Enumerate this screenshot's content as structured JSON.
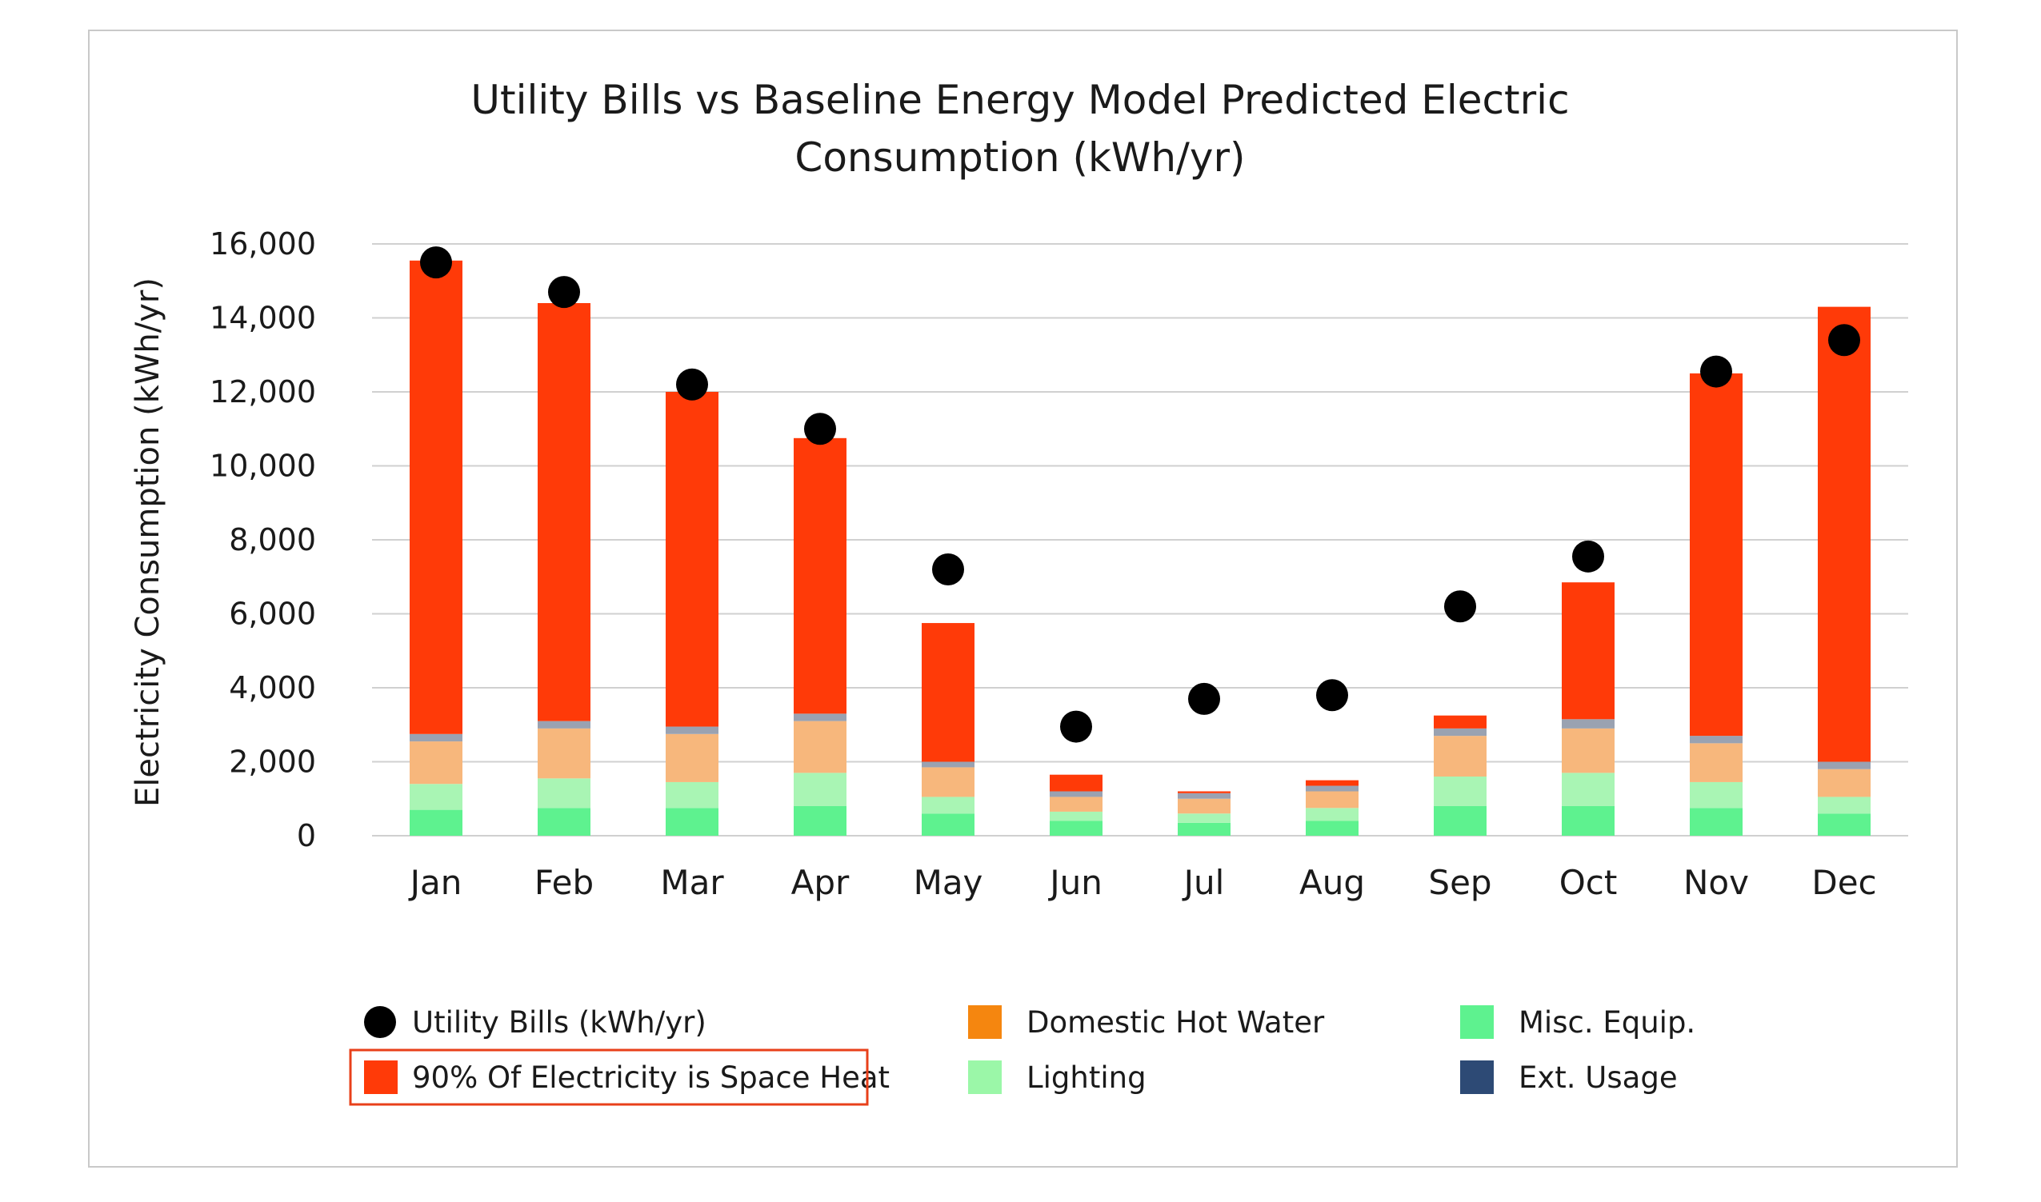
{
  "chart_data": {
    "type": "bar",
    "stacked": true,
    "title_lines": [
      "Utility Bills vs Baseline Energy Model Predicted Electric",
      "Consumption (kWh/yr)"
    ],
    "xlabel": "",
    "ylabel": "Electricity Consumption (kWh/yr)",
    "ylim": [
      0,
      16000
    ],
    "yticks": [
      0,
      2000,
      4000,
      6000,
      8000,
      10000,
      12000,
      14000,
      16000
    ],
    "ytick_labels": [
      "0",
      "2,000",
      "4,000",
      "6,000",
      "8,000",
      "10,000",
      "12,000",
      "14,000",
      "16,000"
    ],
    "grid": true,
    "categories": [
      "Jan",
      "Feb",
      "Mar",
      "Apr",
      "May",
      "Jun",
      "Jul",
      "Aug",
      "Sep",
      "Oct",
      "Nov",
      "Dec"
    ],
    "series": [
      {
        "name": "Misc. Equip.",
        "color": "#5ef28f",
        "values": [
          700,
          750,
          750,
          800,
          600,
          400,
          350,
          400,
          800,
          800,
          750,
          600
        ]
      },
      {
        "name": "Lighting",
        "color": "#a9f5b4",
        "values": [
          700,
          800,
          700,
          900,
          450,
          250,
          250,
          350,
          800,
          900,
          700,
          450
        ]
      },
      {
        "name": "Domestic Hot Water",
        "color": "#f7b77c",
        "values": [
          1150,
          1350,
          1300,
          1400,
          800,
          400,
          400,
          450,
          1100,
          1200,
          1050,
          750
        ]
      },
      {
        "name": "Ext. Usage",
        "color": "#9aa2b1",
        "values": [
          200,
          200,
          200,
          200,
          150,
          150,
          150,
          150,
          200,
          250,
          200,
          200
        ]
      },
      {
        "name": "90% Of Electricity is Space Heat",
        "color": "#ff3a08",
        "values": [
          12800,
          11300,
          9050,
          7450,
          3750,
          450,
          50,
          150,
          350,
          3700,
          9800,
          12300
        ]
      }
    ],
    "scatter_series": {
      "name": "Utility Bills (kWh/yr)",
      "color": "#000000",
      "values": [
        15500,
        14700,
        12200,
        11000,
        7200,
        2950,
        3700,
        3800,
        6200,
        7550,
        12550,
        13400
      ]
    },
    "legend": {
      "placement": "bottom",
      "items": [
        {
          "label": "Utility Bills (kWh/yr)",
          "marker": "circle",
          "color": "#000000"
        },
        {
          "label": "Domestic Hot Water",
          "marker": "square",
          "color": "#f5860f"
        },
        {
          "label": "Misc. Equip.",
          "marker": "square",
          "color": "#5ef28f"
        },
        {
          "label": "90% Of Electricity is Space Heat",
          "marker": "square",
          "color": "#ff3a08",
          "highlighted": true
        },
        {
          "label": "Lighting",
          "marker": "square",
          "color": "#9bf7a8"
        },
        {
          "label": "Ext. Usage",
          "marker": "square",
          "color": "#2d4a75"
        }
      ]
    }
  }
}
